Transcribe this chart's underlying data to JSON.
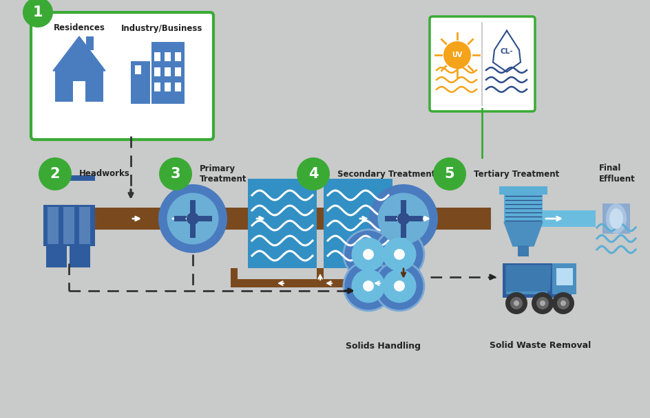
{
  "bg_color": "#c9caca",
  "green": "#3aaa35",
  "blue_dark": "#2e4d8a",
  "blue_mid": "#4a7bbf",
  "blue_clarifier_outer": "#4a7bbf",
  "blue_clarifier_inner": "#6baed6",
  "blue_tank": "#4da6d9",
  "blue_light": "#7ec8e8",
  "blue_pale": "#b8ddf0",
  "brown": "#7a4a1e",
  "orange": "#f5a31a",
  "white": "#ffffff",
  "black": "#222222",
  "gray_med": "#888888",
  "stage1_text1": "Residences",
  "stage1_text2": "Industry/Business",
  "stage2_text": "Headworks",
  "stage3_text1": "Primary",
  "stage3_text2": "Treatment",
  "stage4_text": "Secondary Treatment",
  "stage5_text": "Tertiary Treatment",
  "final_text1": "Final",
  "final_text2": "Effluent",
  "solids_text": "Solids Handling",
  "waste_text": "Solid Waste Removal"
}
